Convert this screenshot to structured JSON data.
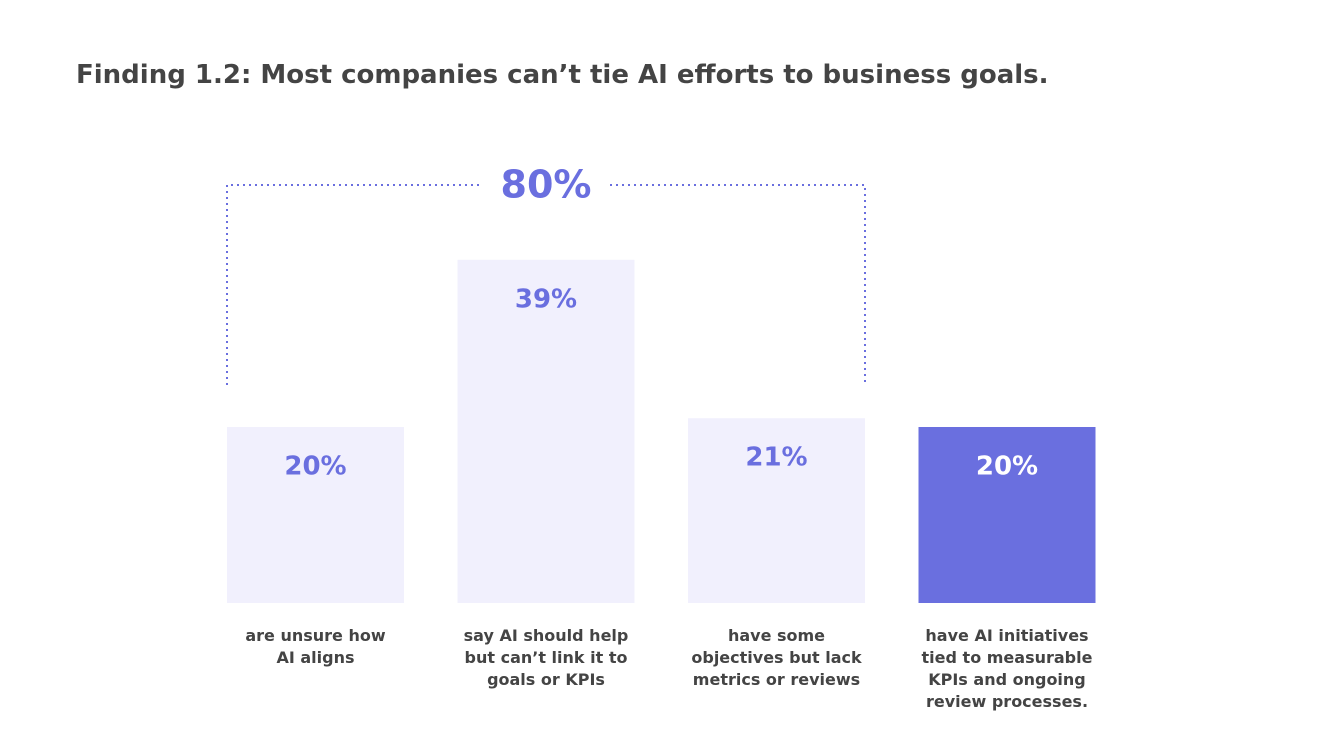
{
  "chart_data": {
    "type": "bar",
    "title": "Finding 1.2: Most companies can’t tie AI efforts to business goals.",
    "categories": [
      "are unsure how\nAI aligns",
      "say AI should help\nbut can’t link it to\ngoals or KPIs",
      "have some\nobjectives but lack\nmetrics or reviews",
      "have AI initiatives\ntied to measurable\nKPIs and ongoing\nreview processes."
    ],
    "values": [
      20,
      39,
      21,
      20
    ],
    "value_labels": [
      "20%",
      "39%",
      "21%",
      "20%"
    ],
    "colors": [
      "#f1f0fd",
      "#f1f0fd",
      "#f1f0fd",
      "#6a6fdf"
    ],
    "label_colors": [
      "#6a6fdf",
      "#6a6fdf",
      "#6a6fdf",
      "#ffffff"
    ],
    "annotation": "80%",
    "annotation_color": "#6a6fdf"
  }
}
